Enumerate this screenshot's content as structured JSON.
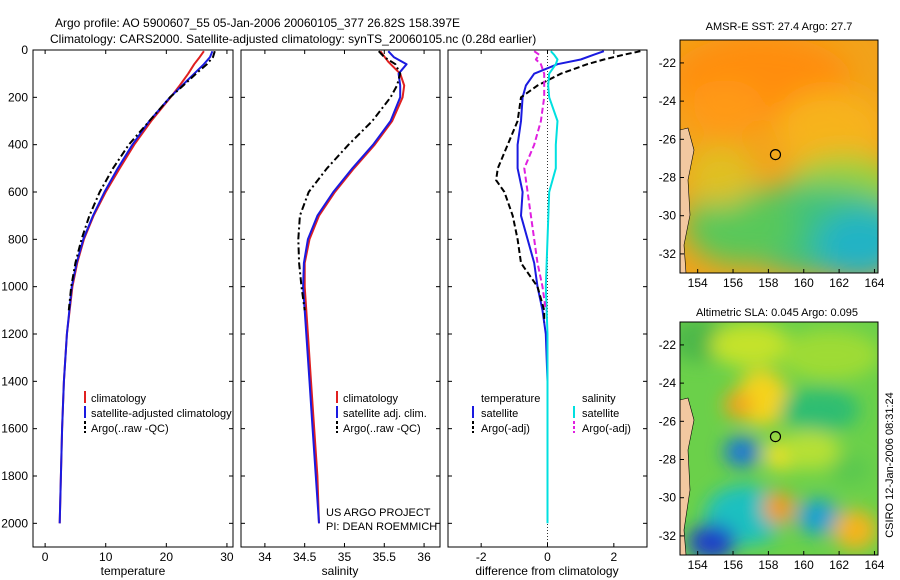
{
  "header": {
    "line1": "Argo profile: AO 5900607_55 05-Jan-2006 20060105_377 26.82S 158.397E",
    "line2": "Climatology: CARS2000. Satellite-adjusted climatology: synTS_20060105.nc (0.28d earlier)"
  },
  "footer": {
    "project": "US ARGO PROJECT",
    "pi": "PI: DEAN ROEMMICH",
    "stamp": "CSIRO 12-Jan-2006 08:31:24"
  },
  "colors": {
    "climatology": "#e02020",
    "satellite": "#1a1ae0",
    "argo": "#000000",
    "salt_satellite": "#00e0e0",
    "salt_argo": "#e020e0"
  },
  "chart_data": [
    {
      "type": "line",
      "name": "temperature",
      "xlabel": "temperature",
      "xlim": [
        -2,
        31
      ],
      "xticks": [
        0,
        10,
        20,
        30
      ],
      "ylim": [
        0,
        2100
      ],
      "yreverse": true,
      "yticks": [
        0,
        200,
        400,
        600,
        800,
        1000,
        1200,
        1400,
        1600,
        1800,
        2000
      ],
      "legend": [
        "climatology",
        "satellite-adjusted climatology",
        "Argo(..raw -QC)"
      ],
      "series": [
        {
          "name": "climatology",
          "style": "solid",
          "color": "#e02020",
          "depth": [
            5,
            30,
            60,
            100,
            150,
            200,
            300,
            400,
            500,
            600,
            700,
            800,
            900,
            1000,
            1200,
            1400,
            1600,
            1800,
            2000
          ],
          "value": [
            26.2,
            25.5,
            24.6,
            23.6,
            22.2,
            20.7,
            17.5,
            14.7,
            12.3,
            10.0,
            8.0,
            6.4,
            5.3,
            4.5,
            3.6,
            3.1,
            2.8,
            2.6,
            2.4
          ]
        },
        {
          "name": "satellite-adjusted climatology",
          "style": "solid",
          "color": "#1a1ae0",
          "depth": [
            5,
            30,
            60,
            100,
            150,
            200,
            300,
            400,
            500,
            600,
            700,
            800,
            900,
            1000,
            1200,
            1400,
            1600,
            1800,
            2000
          ],
          "value": [
            27.6,
            27.2,
            26.2,
            24.6,
            22.6,
            20.6,
            17.2,
            14.4,
            12.0,
            9.8,
            7.9,
            6.3,
            5.2,
            4.4,
            3.6,
            3.1,
            2.8,
            2.6,
            2.4
          ]
        },
        {
          "name": "Argo(..raw -QC)",
          "style": "dashdot",
          "color": "#000000",
          "depth": [
            5,
            30,
            60,
            100,
            150,
            200,
            300,
            400,
            500,
            600,
            700,
            800,
            900,
            1000,
            1100
          ],
          "value": [
            28.0,
            27.7,
            26.7,
            24.9,
            22.8,
            20.6,
            17.2,
            13.8,
            11.2,
            9.0,
            7.3,
            6.0,
            5.0,
            4.3,
            3.9
          ]
        }
      ]
    },
    {
      "type": "line",
      "name": "salinity",
      "xlabel": "salinity",
      "xlim": [
        33.7,
        36.2
      ],
      "xticks": [
        34,
        34.5,
        35,
        35.5,
        36
      ],
      "ylim": [
        0,
        2100
      ],
      "yreverse": true,
      "legend": [
        "climatology",
        "satellite adj. clim.",
        "Argo(..raw -QC)"
      ],
      "series": [
        {
          "name": "climatology",
          "style": "solid",
          "color": "#e02020",
          "depth": [
            5,
            50,
            100,
            150,
            200,
            300,
            400,
            500,
            600,
            700,
            800,
            900,
            1000,
            1200,
            1400,
            1600,
            1800,
            2000
          ],
          "value": [
            35.45,
            35.55,
            35.7,
            35.75,
            35.73,
            35.6,
            35.38,
            35.12,
            34.88,
            34.68,
            34.56,
            34.5,
            34.5,
            34.54,
            34.58,
            34.62,
            34.66,
            34.68
          ]
        },
        {
          "name": "satellite adj. clim.",
          "style": "solid",
          "color": "#1a1ae0",
          "depth": [
            5,
            30,
            60,
            100,
            150,
            200,
            300,
            400,
            500,
            600,
            700,
            800,
            900,
            1000,
            1200,
            1400,
            1600,
            1800,
            2000
          ],
          "value": [
            35.55,
            35.62,
            35.78,
            35.68,
            35.7,
            35.7,
            35.58,
            35.36,
            35.1,
            34.86,
            34.66,
            34.54,
            34.49,
            34.48,
            34.52,
            34.56,
            34.6,
            34.64,
            34.68
          ]
        },
        {
          "name": "Argo(..raw -QC)",
          "style": "dashdot",
          "color": "#000000",
          "depth": [
            5,
            30,
            60,
            100,
            150,
            200,
            300,
            400,
            500,
            600,
            700,
            800,
            900,
            1000,
            1100
          ],
          "value": [
            35.43,
            35.5,
            35.64,
            35.7,
            35.66,
            35.58,
            35.35,
            35.05,
            34.78,
            34.55,
            34.44,
            34.42,
            34.43,
            34.46,
            34.5
          ]
        }
      ]
    },
    {
      "type": "line",
      "name": "difference",
      "xlabel": "difference from climatology",
      "xlim": [
        -3,
        3
      ],
      "xticks": [
        -2,
        0,
        2
      ],
      "ylim": [
        0,
        2100
      ],
      "yreverse": true,
      "legend_temperature": {
        "title": "temperature",
        "items": [
          "satellite",
          "Argo(-adj)"
        ]
      },
      "legend_salinity": {
        "title": "salinity",
        "items": [
          "satellite",
          "Argo(-adj)"
        ]
      },
      "series": [
        {
          "name": "temperature satellite",
          "style": "solid",
          "color": "#1a1ae0",
          "depth": [
            5,
            20,
            40,
            60,
            100,
            150,
            200,
            300,
            400,
            500,
            600,
            700,
            800,
            900,
            1000,
            1100,
            1200,
            1400,
            1600,
            1800,
            1900
          ],
          "value": [
            1.7,
            1.4,
            1.0,
            0.3,
            -0.4,
            -0.65,
            -0.75,
            -0.8,
            -0.9,
            -0.9,
            -0.75,
            -0.8,
            -0.6,
            -0.4,
            -0.3,
            -0.15,
            -0.05,
            0.0,
            0.0,
            0.0,
            0.0
          ]
        },
        {
          "name": "temperature Argo(-adj)",
          "style": "dash",
          "color": "#000000",
          "depth": [
            5,
            20,
            40,
            60,
            100,
            150,
            200,
            300,
            400,
            500,
            550,
            600,
            700,
            800,
            900,
            1000,
            1100,
            1150
          ],
          "value": [
            2.8,
            2.3,
            1.7,
            1.2,
            0.4,
            -0.3,
            -0.8,
            -0.9,
            -1.2,
            -1.5,
            -1.55,
            -1.3,
            -1.05,
            -0.9,
            -0.8,
            -0.3,
            -0.1,
            -0.1
          ]
        },
        {
          "name": "salinity satellite",
          "style": "solid",
          "color": "#00e0e0",
          "depth": [
            5,
            20,
            40,
            60,
            100,
            150,
            200,
            300,
            400,
            500,
            600,
            800,
            1000,
            1200,
            1400,
            1600,
            1800,
            2000
          ],
          "value": [
            0.1,
            0.2,
            0.3,
            0.25,
            0.05,
            0.02,
            0.05,
            0.3,
            0.25,
            0.25,
            0.05,
            0.0,
            -0.05,
            0.0,
            0.0,
            0.0,
            0.0,
            0.0
          ]
        },
        {
          "name": "salinity Argo(-adj)",
          "style": "dash",
          "color": "#e020e0",
          "depth": [
            5,
            20,
            40,
            60,
            100,
            150,
            200,
            300,
            400,
            500,
            600,
            700,
            800,
            900,
            1000,
            1100
          ],
          "value": [
            -0.4,
            -0.25,
            -0.35,
            -0.2,
            -0.1,
            -0.1,
            -0.1,
            -0.2,
            -0.4,
            -0.7,
            -0.6,
            -0.5,
            -0.4,
            -0.3,
            -0.15,
            -0.05
          ]
        }
      ]
    },
    {
      "type": "heatmap",
      "name": "sst_map",
      "title": "AMSR-E SST: 27.4 Argo: 27.7",
      "xlim": [
        153,
        164.2
      ],
      "ylim": [
        -33,
        -20.8
      ],
      "xticks": [
        154,
        156,
        158,
        160,
        162,
        164
      ],
      "yticks": [
        -22,
        -24,
        -26,
        -28,
        -30,
        -32
      ],
      "argo_position": {
        "lon": 158.4,
        "lat": -26.8
      }
    },
    {
      "type": "heatmap",
      "name": "sla_map",
      "title": "Altimetric SLA: 0.045 Argo: 0.095",
      "xlim": [
        153,
        164.2
      ],
      "ylim": [
        -33,
        -20.8
      ],
      "xticks": [
        154,
        156,
        158,
        160,
        162,
        164
      ],
      "yticks": [
        -22,
        -24,
        -26,
        -28,
        -30,
        -32
      ],
      "argo_position": {
        "lon": 158.4,
        "lat": -26.8
      }
    }
  ]
}
